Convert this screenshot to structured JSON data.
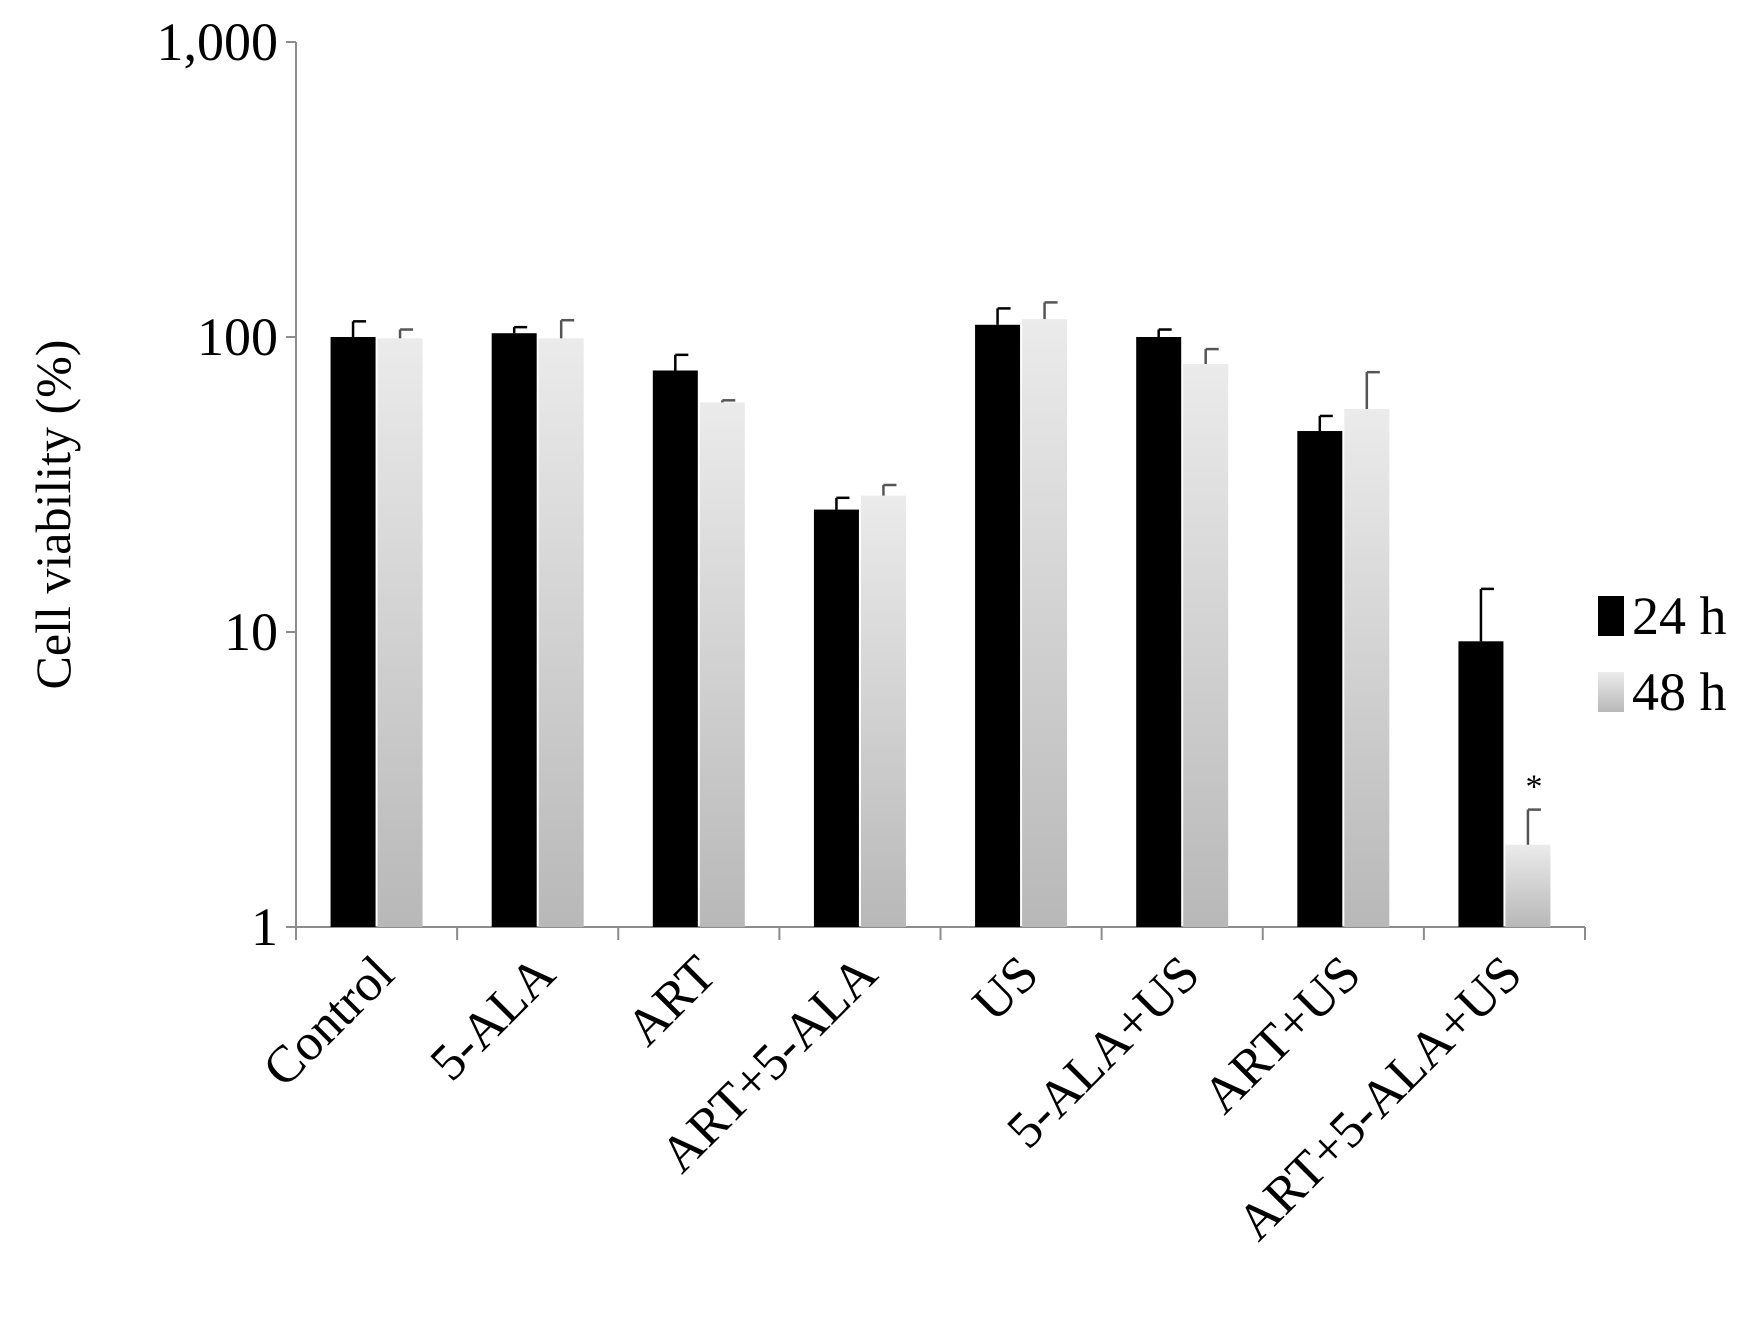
{
  "chart_data": {
    "type": "bar",
    "title": "",
    "xlabel": "",
    "ylabel": "Cell viability (%)",
    "yscale": "log",
    "ylim": [
      1,
      1000
    ],
    "yticks": [
      {
        "value": 1,
        "label": "1"
      },
      {
        "value": 10,
        "label": "10"
      },
      {
        "value": 100,
        "label": "100"
      },
      {
        "value": 1000,
        "label": "1,000"
      }
    ],
    "categories": [
      "Control",
      "5-ALA",
      "ART",
      "ART+5-ALA",
      "US",
      "5-ALA+US",
      "ART+US",
      "ART+5-ALA+US"
    ],
    "series": [
      {
        "name": "24 h",
        "color": "#000000",
        "values": [
          100,
          103,
          77,
          26,
          110,
          100,
          48,
          9.3
        ],
        "errors": [
          13,
          5,
          10,
          2.5,
          15,
          6,
          6,
          4.7
        ]
      },
      {
        "name": "48 h",
        "color": "#d8d8d8",
        "values": [
          99,
          99,
          60,
          29,
          115,
          81,
          57,
          1.9
        ],
        "errors": [
          7,
          15,
          1,
          2.5,
          16,
          10,
          19,
          0.6
        ]
      }
    ],
    "annotations": [
      {
        "text": "*",
        "category": "ART+5-ALA+US",
        "series": "48 h"
      }
    ],
    "grid": false,
    "legend": "right"
  }
}
